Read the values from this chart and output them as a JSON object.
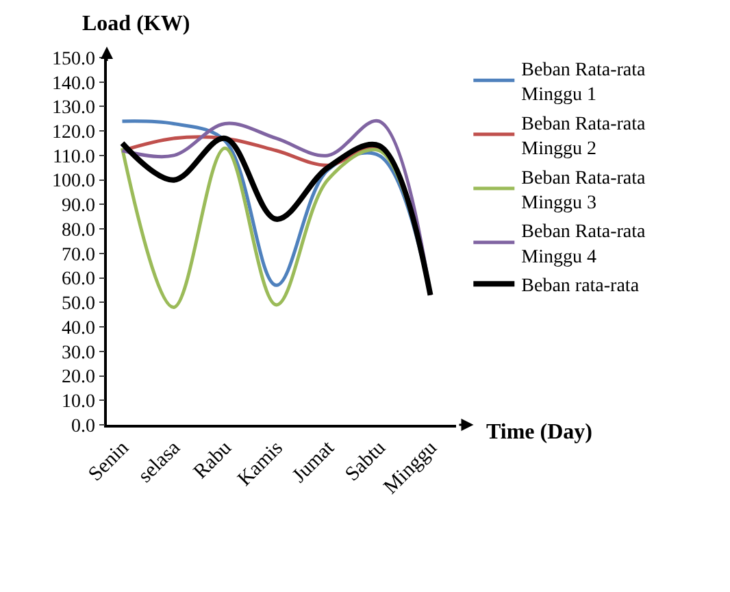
{
  "chart_data": {
    "type": "line",
    "xlabel": "Time (Day)",
    "ylabel": "Load (KW)",
    "categories": [
      "Senin",
      "selasa",
      "Rabu",
      "Kamis",
      "Jumat",
      "Sabtu",
      "Minggu"
    ],
    "series": [
      {
        "name": "Beban Rata-rata Minggu 1",
        "color": "#4f81bd",
        "values": [
          124,
          123,
          116,
          57,
          104,
          110,
          53
        ]
      },
      {
        "name": "Beban Rata-rata Minggu 2",
        "color": "#c0504d",
        "values": [
          112,
          117,
          117,
          112,
          106,
          113,
          53
        ]
      },
      {
        "name": "Beban Rata-rata Minggu 3",
        "color": "#9bbb59",
        "values": [
          113,
          48,
          113,
          49,
          100,
          112,
          53
        ]
      },
      {
        "name": "Beban Rata-rata Minggu 4",
        "color": "#8064a2",
        "values": [
          112,
          110,
          123,
          117,
          110,
          124,
          53
        ]
      },
      {
        "name": "Beban rata-rata",
        "color": "#000000",
        "values": [
          115,
          100,
          117,
          84,
          105,
          114,
          53
        ]
      }
    ],
    "ylim": [
      0,
      150
    ],
    "yticks": [
      {
        "value": 0,
        "label": "0.0"
      },
      {
        "value": 10,
        "label": "10.0"
      },
      {
        "value": 20,
        "label": "20.0"
      },
      {
        "value": 30,
        "label": "30.0"
      },
      {
        "value": 40,
        "label": "40.0"
      },
      {
        "value": 50,
        "label": "50.0"
      },
      {
        "value": 60,
        "label": "60.0"
      },
      {
        "value": 70,
        "label": "70.0"
      },
      {
        "value": 80,
        "label": "80.0"
      },
      {
        "value": 90,
        "label": "90.0"
      },
      {
        "value": 100,
        "label": "100.0"
      },
      {
        "value": 110,
        "label": "110.0"
      },
      {
        "value": 120,
        "label": "120.0"
      },
      {
        "value": 130,
        "label": "130.0"
      },
      {
        "value": 140,
        "label": "140.0"
      },
      {
        "value": 150,
        "label": "150.0"
      }
    ],
    "legend": "right",
    "marker": "none",
    "line_style": "solid"
  }
}
